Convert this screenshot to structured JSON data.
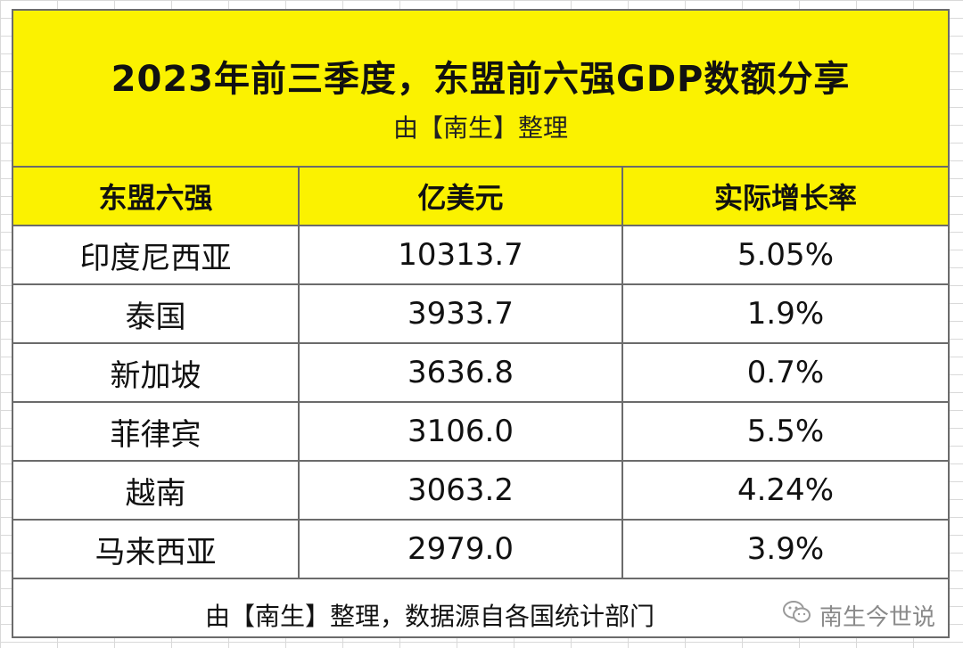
{
  "title": "2023年前三季度，东盟前六强GDP数额分享",
  "subtitle": "由【南生】整理",
  "headers": [
    "东盟六强",
    "亿美元",
    "实际增长率"
  ],
  "rows": [
    {
      "country": "印度尼西亚",
      "gdp": "10313.7",
      "growth": "5.05%"
    },
    {
      "country": "泰国",
      "gdp": "3933.7",
      "growth": "1.9%"
    },
    {
      "country": "新加坡",
      "gdp": "3636.8",
      "growth": "0.7%"
    },
    {
      "country": "菲律宾",
      "gdp": "3106.0",
      "growth": "5.5%"
    },
    {
      "country": "越南",
      "gdp": "3063.2",
      "growth": "4.24%"
    },
    {
      "country": "马来西亚",
      "gdp": "2979.0",
      "growth": "3.9%"
    }
  ],
  "footer": "由【南生】整理，数据源自各国统计部门",
  "watermark": "南生今世说",
  "colors": {
    "header_bg": "#fbf200",
    "border": "#6b6b6b"
  },
  "chart_data": {
    "type": "table",
    "title": "2023年前三季度，东盟前六强GDP数额分享",
    "columns": [
      "东盟六强",
      "亿美元",
      "实际增长率"
    ],
    "categories": [
      "印度尼西亚",
      "泰国",
      "新加坡",
      "菲律宾",
      "越南",
      "马来西亚"
    ],
    "series": [
      {
        "name": "亿美元",
        "values": [
          10313.7,
          3933.7,
          3636.8,
          3106.0,
          3063.2,
          2979.0
        ]
      },
      {
        "name": "实际增长率",
        "values": [
          5.05,
          1.9,
          0.7,
          5.5,
          4.24,
          3.9
        ]
      }
    ]
  }
}
